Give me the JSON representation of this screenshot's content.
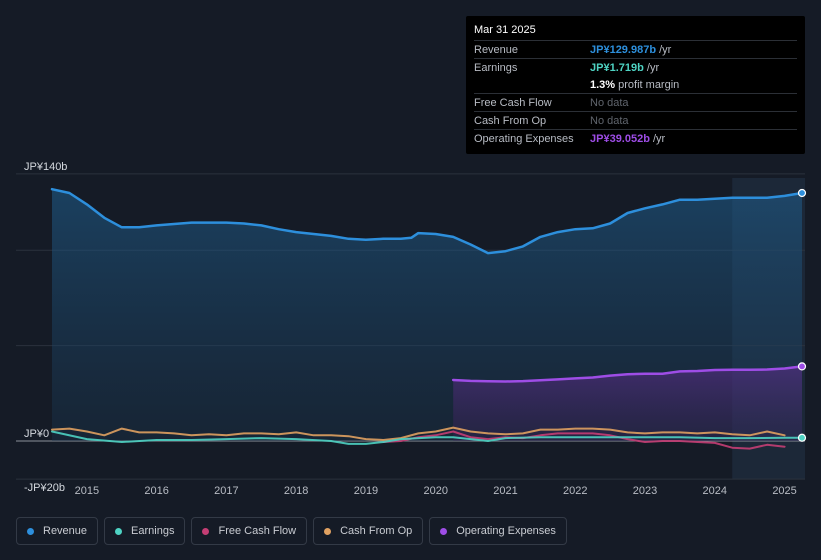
{
  "chart_data": {
    "type": "area",
    "title": "",
    "y_label_top": "JP¥140b",
    "y_label_zero": "JP¥0",
    "y_label_bottom": "-JP¥20b",
    "ylim": [
      -20,
      140
    ],
    "xlim": [
      2014.45,
      2025.25
    ],
    "x_ticks": [
      "2015",
      "2016",
      "2017",
      "2018",
      "2019",
      "2020",
      "2021",
      "2022",
      "2023",
      "2024",
      "2025"
    ],
    "highlight_from": 2024.25,
    "series": [
      {
        "name": "Revenue",
        "color": "#2d8fdc",
        "x": [
          2014.5,
          2014.75,
          2015.0,
          2015.25,
          2015.5,
          2015.75,
          2016.0,
          2016.5,
          2017.0,
          2017.25,
          2017.5,
          2017.75,
          2018.0,
          2018.5,
          2018.75,
          2019.0,
          2019.25,
          2019.5,
          2019.65,
          2019.75,
          2020.0,
          2020.25,
          2020.5,
          2020.75,
          2021.0,
          2021.25,
          2021.5,
          2021.75,
          2022.0,
          2022.25,
          2022.5,
          2022.75,
          2023.0,
          2023.25,
          2023.5,
          2023.75,
          2024.0,
          2024.25,
          2024.5,
          2024.75,
          2025.0,
          2025.25
        ],
        "values": [
          132,
          130,
          124,
          117,
          112,
          112,
          113,
          114.5,
          114.5,
          114,
          113,
          111,
          109.5,
          107.5,
          106,
          105.5,
          106,
          106,
          106.5,
          109,
          108.5,
          107,
          103,
          98.5,
          99.5,
          102,
          107,
          109.5,
          111,
          111.5,
          114,
          119.5,
          122,
          124,
          126.5,
          126.5,
          127,
          127.5,
          127.5,
          127.5,
          128.5,
          130
        ]
      },
      {
        "name": "Earnings",
        "color": "#4ed3c3",
        "x": [
          2014.5,
          2015.0,
          2015.5,
          2016.0,
          2016.5,
          2017.0,
          2017.5,
          2018.0,
          2018.5,
          2018.75,
          2019.0,
          2019.25,
          2019.5,
          2020.0,
          2020.25,
          2020.5,
          2020.75,
          2021.0,
          2021.5,
          2022.0,
          2022.5,
          2023.0,
          2023.5,
          2024.0,
          2024.5,
          2025.0,
          2025.25
        ],
        "values": [
          5,
          1,
          -0.5,
          0.5,
          0.5,
          1,
          1.5,
          1,
          0,
          -1.5,
          -1.5,
          -0.5,
          1,
          2,
          2,
          1,
          0,
          1.5,
          2,
          2,
          2,
          2,
          2,
          1.5,
          1.5,
          1.7,
          1.7
        ]
      },
      {
        "name": "Free Cash Flow",
        "color": "#c43e74",
        "x": [
          2019.25,
          2019.5,
          2019.75,
          2020.0,
          2020.25,
          2020.5,
          2020.75,
          2021.0,
          2021.25,
          2021.5,
          2021.75,
          2022.0,
          2022.25,
          2022.5,
          2022.75,
          2023.0,
          2023.25,
          2023.5,
          2023.75,
          2024.0,
          2024.25,
          2024.5,
          2024.75,
          2025.0
        ],
        "values": [
          -0.5,
          0,
          2,
          3,
          5,
          2,
          1,
          2,
          1.5,
          3,
          4,
          4,
          4,
          3,
          1,
          -0.5,
          0,
          0,
          -0.5,
          -1,
          -3.5,
          -4,
          -2,
          -3
        ]
      },
      {
        "name": "Cash From Op",
        "color": "#e0a161",
        "x": [
          2014.5,
          2014.75,
          2015.0,
          2015.25,
          2015.5,
          2015.75,
          2016.0,
          2016.25,
          2016.5,
          2016.75,
          2017.0,
          2017.25,
          2017.5,
          2017.75,
          2018.0,
          2018.25,
          2018.5,
          2018.75,
          2019.0,
          2019.25,
          2019.5,
          2019.75,
          2020.0,
          2020.25,
          2020.5,
          2020.75,
          2021.0,
          2021.25,
          2021.5,
          2021.75,
          2022.0,
          2022.25,
          2022.5,
          2022.75,
          2023.0,
          2023.25,
          2023.5,
          2023.75,
          2024.0,
          2024.25,
          2024.5,
          2024.75,
          2025.0
        ],
        "values": [
          6,
          6.5,
          5,
          3,
          6.5,
          4.5,
          4.5,
          4,
          3,
          3.5,
          3,
          4,
          4,
          3.5,
          4.5,
          3,
          3,
          2.5,
          1,
          0.5,
          1.5,
          4,
          5,
          7,
          5,
          4,
          3.5,
          4,
          6,
          6,
          6.5,
          6.5,
          6,
          4.5,
          4,
          4.5,
          4.5,
          4,
          4.5,
          3.5,
          3,
          5,
          3
        ]
      },
      {
        "name": "Operating Expenses",
        "color": "#9e4de6",
        "x": [
          2020.25,
          2020.5,
          2020.75,
          2021.0,
          2021.25,
          2021.5,
          2021.75,
          2022.0,
          2022.25,
          2022.5,
          2022.75,
          2023.0,
          2023.25,
          2023.5,
          2023.75,
          2024.0,
          2024.25,
          2024.5,
          2024.75,
          2025.0,
          2025.25
        ],
        "values": [
          32,
          31.5,
          31.3,
          31.2,
          31.4,
          31.8,
          32.3,
          32.8,
          33.3,
          34.3,
          35,
          35.3,
          35.3,
          36.5,
          36.7,
          37.2,
          37.3,
          37.3,
          37.5,
          38,
          39.1
        ]
      }
    ]
  },
  "tooltip": {
    "date": "Mar 31 2025",
    "rows": [
      {
        "label": "Revenue",
        "value": "JP¥129.987b",
        "unit": "/yr",
        "color": "#2d8fdc"
      },
      {
        "label": "Earnings",
        "value": "JP¥1.719b",
        "unit": "/yr",
        "color": "#4ed3c3"
      },
      {
        "label": "",
        "value": "1.3%",
        "unit": "profit margin",
        "color": "#ffffff"
      },
      {
        "label": "Free Cash Flow",
        "value": "No data",
        "unit": "",
        "color": "#60656d"
      },
      {
        "label": "Cash From Op",
        "value": "No data",
        "unit": "",
        "color": "#60656d"
      },
      {
        "label": "Operating Expenses",
        "value": "JP¥39.052b",
        "unit": "/yr",
        "color": "#9e4de6"
      }
    ]
  },
  "legend": [
    {
      "label": "Revenue",
      "color": "#2d8fdc"
    },
    {
      "label": "Earnings",
      "color": "#4ed3c3"
    },
    {
      "label": "Free Cash Flow",
      "color": "#c43e74"
    },
    {
      "label": "Cash From Op",
      "color": "#e0a161"
    },
    {
      "label": "Operating Expenses",
      "color": "#9e4de6"
    }
  ]
}
